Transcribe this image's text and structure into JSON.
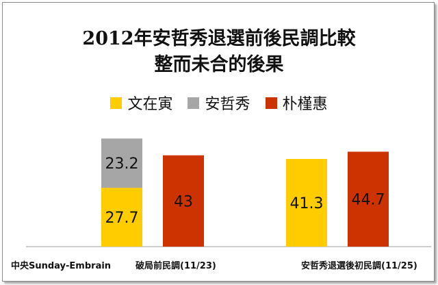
{
  "colors": {
    "yellow": "#FFCC00",
    "gray": "#A6A6A6",
    "red": "#CC3300",
    "axis": "#9a9a9a"
  },
  "chart_data": {
    "type": "bar",
    "title": "2012年安哲秀退選前後民調比較",
    "subtitle": "整而未合的後果",
    "legend": [
      "文在寅",
      "安哲秀",
      "朴槿惠"
    ],
    "legend_position": "top",
    "source_label": "中央Sunday-Embrain",
    "categories": [
      "破局前民調(11/23)",
      "安哲秀退選後初民調(11/25)"
    ],
    "series": [
      {
        "name": "文在寅",
        "values": [
          27.7,
          41.3
        ]
      },
      {
        "name": "安哲秀",
        "values": [
          23.2,
          null
        ]
      },
      {
        "name": "朴槿惠",
        "values": [
          43,
          44.7
        ]
      }
    ],
    "data_labels": {
      "文在寅": [
        "27.7",
        "41.3"
      ],
      "安哲秀": [
        "23.2",
        ""
      ],
      "朴槿惠": [
        "43",
        "44.7"
      ]
    },
    "ylim": [
      0,
      100
    ],
    "grid": false
  }
}
